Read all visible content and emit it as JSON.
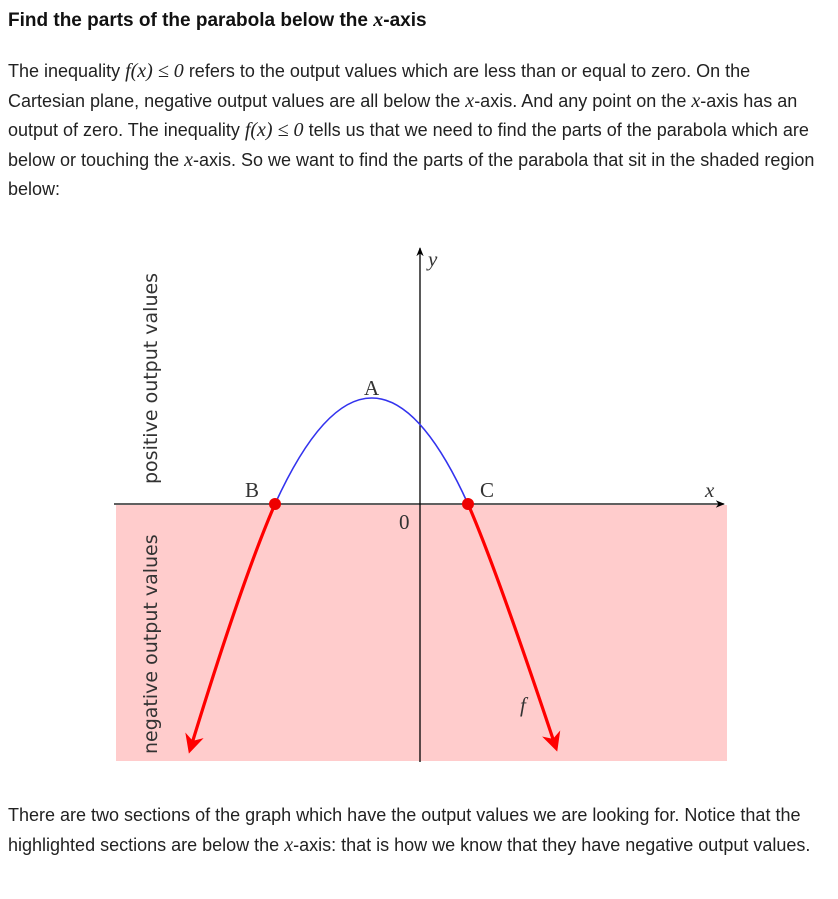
{
  "heading": {
    "before": "Find the parts of the parabola below the ",
    "var": "x",
    "after": "-axis"
  },
  "intro": {
    "t1": "The inequality ",
    "m1": "f(x) ≤ 0",
    "t2": " refers to the output values which are less than or equal to zero. On the Cartesian plane, negative output values are all below the ",
    "m2": "x",
    "t3": "-axis. And any point on the ",
    "m3": "x",
    "t4": "-axis has an output of zero. The inequality ",
    "m4": "f(x) ≤ 0",
    "t5": " tells us that we need to find the parts of the parabola which are below or touching the ",
    "m5": "x",
    "t6": "-axis. So we want to find the parts of the parabola that sit in the shaded region below:"
  },
  "outro": {
    "t1": "There are two sections of the graph which have the output values we are looking for. Notice that the highlighted sections are below the ",
    "m1": "x",
    "t2": "-axis: that is how we know that they have negative output values."
  },
  "figure": {
    "positive_label": "positive output values",
    "negative_label": "negative output values",
    "x_axis_label": "x",
    "y_axis_label": "y",
    "origin_label": "0",
    "function_label": "f",
    "points": [
      {
        "label": "A",
        "role": "vertex"
      },
      {
        "label": "B",
        "role": "left x-intercept"
      },
      {
        "label": "C",
        "role": "right x-intercept"
      }
    ],
    "colors": {
      "shaded_region": "#ffcccc",
      "curve_above": "#3333ee",
      "curve_below": "#ff0000",
      "intercept_points": "#ee0000",
      "axes": "#000000"
    }
  }
}
